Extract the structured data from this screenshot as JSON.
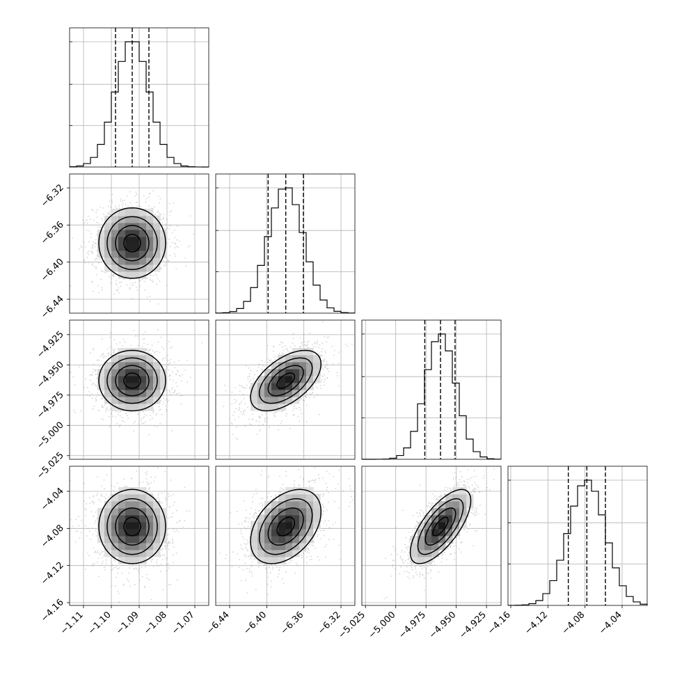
{
  "chart_data": {
    "type": "corner",
    "parameters": [
      {
        "index": 0,
        "range": [
          -1.115,
          -1.065
        ],
        "ticks": [
          -1.11,
          -1.1,
          -1.09,
          -1.08,
          -1.07
        ],
        "tick_labels": [
          "−1.11",
          "−1.10",
          "−1.09",
          "−1.08",
          "−1.07"
        ],
        "quantiles": [
          -1.0985,
          -1.0925,
          -1.0865
        ],
        "mean": -1.0925,
        "sd": 0.006
      },
      {
        "index": 1,
        "range": [
          -6.455,
          -6.305
        ],
        "ticks": [
          -6.44,
          -6.4,
          -6.36,
          -6.32
        ],
        "tick_labels": [
          "−6.44",
          "−6.40",
          "−6.36",
          "−6.32"
        ],
        "quantiles": [
          -6.3985,
          -6.3795,
          -6.3605
        ],
        "mean": -6.3795,
        "sd": 0.019
      },
      {
        "index": 2,
        "range": [
          -5.028,
          -4.913
        ],
        "ticks": [
          -5.025,
          -5.0,
          -4.975,
          -4.95,
          -4.925
        ],
        "tick_labels": [
          "−5.025",
          "−5.000",
          "−4.975",
          "−4.950",
          "−4.925"
        ],
        "quantiles": [
          -4.976,
          -4.963,
          -4.951
        ],
        "mean": -4.963,
        "sd": 0.0125
      },
      {
        "index": 3,
        "range": [
          -4.163,
          -4.013
        ],
        "ticks": [
          -4.16,
          -4.12,
          -4.08,
          -4.04
        ],
        "tick_labels": [
          "−4.16",
          "−4.12",
          "−4.08",
          "−4.04"
        ],
        "quantiles": [
          -4.098,
          -4.078,
          -4.058
        ],
        "mean": -4.078,
        "sd": 0.02
      }
    ],
    "histogram_peak_ticks": [
      {
        "index": 0,
        "ticks": [
          0.33,
          0.66,
          1.0
        ]
      },
      {
        "index": 1,
        "ticks": [
          0.33,
          0.66,
          1.0
        ]
      },
      {
        "index": 2,
        "ticks": [
          0.33,
          0.66,
          1.0
        ]
      },
      {
        "index": 3,
        "ticks": [
          0.33,
          0.66,
          1.0
        ]
      }
    ],
    "correlations": [
      {
        "pair": [
          1,
          0
        ],
        "rho": 0.0
      },
      {
        "pair": [
          2,
          0
        ],
        "rho": 0.0
      },
      {
        "pair": [
          2,
          1
        ],
        "rho": 0.55
      },
      {
        "pair": [
          3,
          0
        ],
        "rho": 0.0
      },
      {
        "pair": [
          3,
          1
        ],
        "rho": 0.4
      },
      {
        "pair": [
          3,
          2
        ],
        "rho": 0.7
      }
    ],
    "contour_levels_sigma": [
      0.5,
      1.0,
      1.5,
      2.0
    ],
    "grid": true,
    "colors": {
      "hist": "#000000",
      "points": "#9e9e9e",
      "density": "#000000",
      "grid": "#b0b0b0"
    }
  }
}
